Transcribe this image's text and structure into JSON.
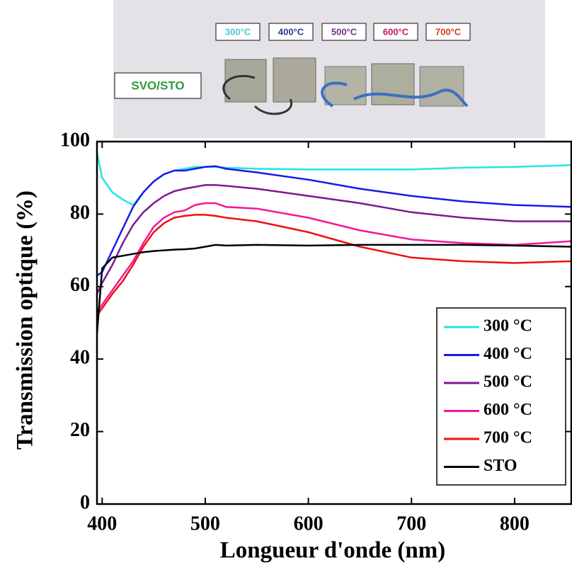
{
  "inset": {
    "labels": [
      {
        "text": "300°C",
        "color": "#4fc3d9"
      },
      {
        "text": "400°C",
        "color": "#2b3a8f"
      },
      {
        "text": "500°C",
        "color": "#7a2a8f"
      },
      {
        "text": "600°C",
        "color": "#c2185b"
      },
      {
        "text": "700°C",
        "color": "#d63a1f"
      }
    ],
    "sample_label": {
      "text": "SVO/STO",
      "color": "#2e9b3e"
    }
  },
  "chart_data": {
    "type": "line",
    "y_label": "Transmission optique (%)",
    "x_label": "Longueur d'onde (nm)",
    "x": [
      395,
      400,
      410,
      420,
      430,
      440,
      450,
      460,
      470,
      480,
      490,
      500,
      510,
      520,
      550,
      600,
      650,
      700,
      750,
      800,
      855
    ],
    "series": [
      {
        "name": "300 °C",
        "color": "#22e5e5",
        "values": [
          97,
          90,
          86,
          84,
          82.5,
          86,
          89,
          91,
          92,
          92.5,
          93,
          93,
          93,
          92.8,
          92.5,
          92.3,
          92.3,
          92.3,
          92.8,
          93,
          93.5
        ]
      },
      {
        "name": "400 °C",
        "color": "#1a1ae6",
        "values": [
          63,
          64,
          70,
          76,
          82,
          86,
          89,
          91,
          92,
          92,
          92.5,
          93,
          93.2,
          92.5,
          91.5,
          89.5,
          87,
          85,
          83.5,
          82.5,
          82
        ]
      },
      {
        "name": "500 °C",
        "color": "#7b1a8f",
        "values": [
          58,
          61,
          66,
          72,
          77,
          80.5,
          83,
          85,
          86.3,
          87,
          87.5,
          88,
          88,
          87.8,
          87,
          85,
          83,
          80.5,
          79,
          78,
          78
        ]
      },
      {
        "name": "600 °C",
        "color": "#f0189a",
        "values": [
          53,
          55,
          59,
          63,
          67,
          72,
          76.5,
          79,
          80.5,
          81,
          82.5,
          83,
          83,
          82,
          81.5,
          79,
          75.5,
          73,
          72,
          71.5,
          72.5
        ]
      },
      {
        "name": "700 °C",
        "color": "#ee1111",
        "values": [
          52,
          54,
          58,
          61.5,
          66,
          71,
          75,
          77.5,
          79,
          79.5,
          79.8,
          79.8,
          79.5,
          79,
          78,
          75,
          71,
          68,
          67,
          66.5,
          67
        ]
      },
      {
        "name": "STO",
        "color": "#000000",
        "values": [
          47,
          65,
          68,
          68.5,
          69,
          69.5,
          69.8,
          70,
          70.2,
          70.3,
          70.5,
          71,
          71.5,
          71.3,
          71.5,
          71.3,
          71.5,
          71.5,
          71.5,
          71.3,
          71
        ]
      }
    ],
    "xlim": [
      395,
      855
    ],
    "ylim": [
      0,
      100
    ],
    "xticks": [
      400,
      500,
      600,
      700,
      800
    ],
    "yticks": [
      0,
      20,
      40,
      60,
      80,
      100
    ],
    "legend": "lower right"
  }
}
